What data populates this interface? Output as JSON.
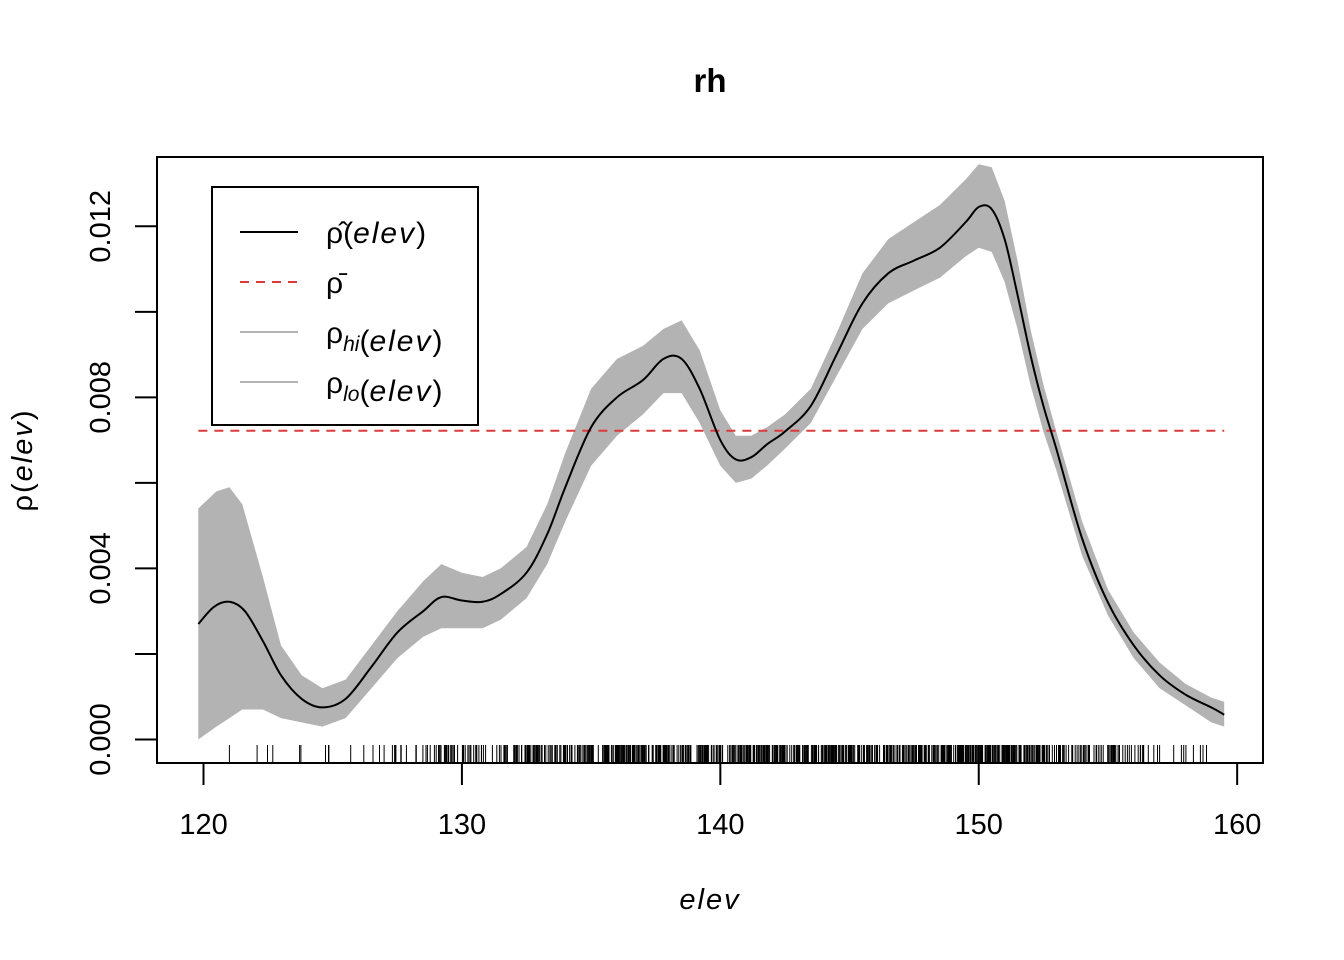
{
  "chart_data": {
    "type": "line",
    "title": "rh",
    "xlabel": "elev",
    "ylabel": {
      "symbol": "ρ",
      "arg": "elev"
    },
    "xlim": [
      118.2,
      161.0
    ],
    "ylim": [
      -0.00055,
      0.01362
    ],
    "x_ticks": [
      120,
      130,
      140,
      150,
      160
    ],
    "x_tick_labels": [
      "120",
      "130",
      "140",
      "150",
      "160"
    ],
    "y_ticks": [
      0.0,
      0.002,
      0.004,
      0.006,
      0.008,
      0.01,
      0.012
    ],
    "y_tick_labels": [
      "0.000",
      "",
      "0.004",
      "",
      "0.008",
      "",
      "0.012"
    ],
    "colors": {
      "estimate": "#000000",
      "mean": "#df3a3a",
      "band": "#b3b3b3"
    },
    "series": [
      {
        "name_parts": {
          "symbol": "ρ̂",
          "sub": "",
          "arg": "elev"
        },
        "style": "solid",
        "x": [
          119.8,
          120.4,
          121.0,
          121.6,
          122.3,
          123.0,
          123.8,
          124.6,
          125.5,
          126.5,
          127.5,
          128.5,
          129.2,
          130.0,
          130.8,
          131.5,
          132.5,
          133.3,
          134.0,
          135.0,
          136.0,
          137.0,
          137.8,
          138.5,
          139.2,
          140.0,
          140.6,
          141.2,
          141.8,
          142.5,
          143.5,
          144.5,
          145.5,
          146.5,
          147.5,
          148.5,
          149.5,
          150.0,
          150.5,
          151.0,
          151.5,
          152.0,
          152.5,
          153.0,
          154.0,
          155.0,
          156.0,
          157.0,
          158.0,
          159.0,
          159.5
        ],
        "y": [
          0.0027,
          0.0031,
          0.00322,
          0.003,
          0.0023,
          0.0015,
          0.00095,
          0.00075,
          0.00095,
          0.0017,
          0.0025,
          0.003,
          0.00333,
          0.00325,
          0.00322,
          0.0034,
          0.0039,
          0.0048,
          0.0059,
          0.0073,
          0.008,
          0.0084,
          0.0089,
          0.0089,
          0.0082,
          0.007,
          0.00655,
          0.0066,
          0.0069,
          0.0072,
          0.0078,
          0.009,
          0.0102,
          0.0109,
          0.0112,
          0.0115,
          0.0121,
          0.01245,
          0.0124,
          0.0117,
          0.0104,
          0.009,
          0.0078,
          0.0068,
          0.0047,
          0.0032,
          0.0022,
          0.0015,
          0.00105,
          0.00075,
          0.00058
        ]
      },
      {
        "name_parts": {
          "symbol": "ρ̄",
          "sub": "",
          "arg": ""
        },
        "style": "dashed",
        "x": [
          119.8,
          159.5
        ],
        "y": [
          0.00722,
          0.00722
        ]
      },
      {
        "name_parts": {
          "symbol": "ρ",
          "sub": "hi",
          "arg": "elev"
        },
        "style": "band-upper",
        "x": [
          119.8,
          120.5,
          121.0,
          121.5,
          122.3,
          123.0,
          123.8,
          124.6,
          125.5,
          126.5,
          127.5,
          128.5,
          129.2,
          130.0,
          130.8,
          131.5,
          132.5,
          133.3,
          134.0,
          135.0,
          136.0,
          137.0,
          137.8,
          138.5,
          139.2,
          140.0,
          140.6,
          141.2,
          141.8,
          142.5,
          143.5,
          144.5,
          145.5,
          146.5,
          147.5,
          148.5,
          149.5,
          150.0,
          150.5,
          151.0,
          151.5,
          152.0,
          152.5,
          153.0,
          154.0,
          155.0,
          156.0,
          157.0,
          158.0,
          159.0,
          159.5
        ],
        "y": [
          0.0054,
          0.0058,
          0.0059,
          0.0055,
          0.0038,
          0.0022,
          0.0015,
          0.0012,
          0.0014,
          0.0022,
          0.003,
          0.0037,
          0.0041,
          0.0039,
          0.0038,
          0.004,
          0.0045,
          0.0055,
          0.0067,
          0.0082,
          0.0089,
          0.0092,
          0.0096,
          0.0098,
          0.0091,
          0.0077,
          0.0071,
          0.0071,
          0.0073,
          0.0076,
          0.0082,
          0.0095,
          0.0109,
          0.0117,
          0.0121,
          0.0125,
          0.0131,
          0.01345,
          0.01338,
          0.0126,
          0.0112,
          0.0096,
          0.0083,
          0.0072,
          0.0051,
          0.0035,
          0.0025,
          0.0018,
          0.0013,
          0.00098,
          0.00088
        ]
      },
      {
        "name_parts": {
          "symbol": "ρ",
          "sub": "lo",
          "arg": "elev"
        },
        "style": "band-lower",
        "x": [
          119.8,
          120.5,
          121.0,
          121.5,
          122.3,
          123.0,
          123.8,
          124.6,
          125.5,
          126.5,
          127.5,
          128.5,
          129.2,
          130.0,
          130.8,
          131.5,
          132.5,
          133.3,
          134.0,
          135.0,
          136.0,
          137.0,
          137.8,
          138.5,
          139.2,
          140.0,
          140.6,
          141.2,
          141.8,
          142.5,
          143.5,
          144.5,
          145.5,
          146.5,
          147.5,
          148.5,
          149.5,
          150.0,
          150.5,
          151.0,
          151.5,
          152.0,
          152.5,
          153.0,
          154.0,
          155.0,
          156.0,
          157.0,
          158.0,
          159.0,
          159.5
        ],
        "y": [
          0.0,
          0.0003,
          0.0005,
          0.0007,
          0.0007,
          0.0005,
          0.0004,
          0.0003,
          0.0005,
          0.0012,
          0.0019,
          0.0024,
          0.0026,
          0.0026,
          0.0026,
          0.0028,
          0.0033,
          0.0041,
          0.0051,
          0.0064,
          0.0071,
          0.0076,
          0.0081,
          0.0081,
          0.0074,
          0.0064,
          0.006,
          0.0061,
          0.0064,
          0.0068,
          0.0074,
          0.0085,
          0.0096,
          0.0102,
          0.0105,
          0.0108,
          0.0113,
          0.0115,
          0.0114,
          0.0107,
          0.0096,
          0.0083,
          0.0072,
          0.0063,
          0.0043,
          0.0029,
          0.0019,
          0.0012,
          0.0008,
          0.0004,
          0.0003
        ]
      }
    ],
    "legend": {
      "position": "top-left",
      "entries": [
        0,
        1,
        2,
        3
      ]
    },
    "rug_density": [
      {
        "x": [
          121.0,
          126.1
        ],
        "count": 10
      },
      {
        "x": [
          126.1,
          128.0
        ],
        "count": 12
      },
      {
        "x": [
          128.0,
          132.0
        ],
        "count": 60
      },
      {
        "x": [
          132.0,
          136.0
        ],
        "count": 110
      },
      {
        "x": [
          136.0,
          144.0
        ],
        "count": 260
      },
      {
        "x": [
          144.0,
          152.5
        ],
        "count": 330
      },
      {
        "x": [
          152.5,
          156.5
        ],
        "count": 75
      },
      {
        "x": [
          156.5,
          159.2
        ],
        "count": 12
      }
    ]
  }
}
